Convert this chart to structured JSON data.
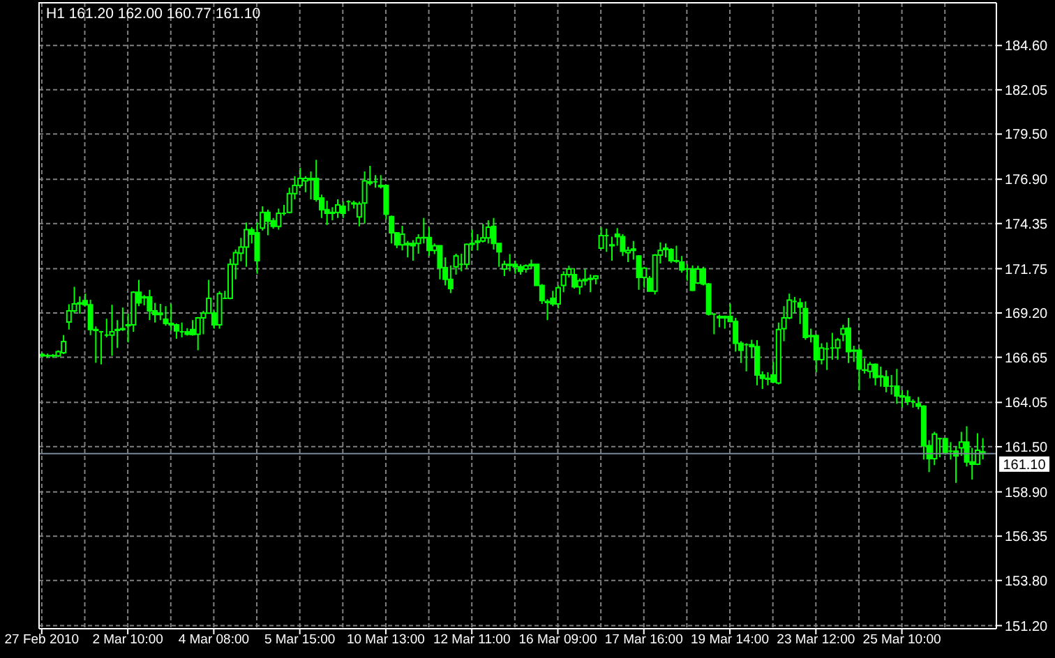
{
  "chart_data": {
    "type": "candlestick",
    "title": "H1 161.20 162.00 160.77 161.10",
    "color": "#00ff00",
    "grid": true,
    "ylim": [
      151.02,
      187.06
    ],
    "yticks": [
      {
        "value": 151.2,
        "label": "151.20"
      },
      {
        "value": 153.8,
        "label": "153.80"
      },
      {
        "value": 156.35,
        "label": "156.35"
      },
      {
        "value": 158.9,
        "label": "158.90"
      },
      {
        "value": 161.5,
        "label": "161.50"
      },
      {
        "value": 164.05,
        "label": "164.05"
      },
      {
        "value": 166.65,
        "label": "166.65"
      },
      {
        "value": 169.2,
        "label": "169.20"
      },
      {
        "value": 171.75,
        "label": "171.75"
      },
      {
        "value": 174.35,
        "label": "174.35"
      },
      {
        "value": 176.9,
        "label": "176.90"
      },
      {
        "value": 179.5,
        "label": "179.50"
      },
      {
        "value": 182.05,
        "label": "182.05"
      },
      {
        "value": 184.6,
        "label": "184.60"
      }
    ],
    "ref_lines": [
      {
        "axis": "y",
        "value": 161.1,
        "label": "161.10",
        "color": "#778899"
      }
    ],
    "categories": [
      "27 Feb 2010",
      null,
      null,
      null,
      null,
      null,
      null,
      null,
      null,
      null,
      null,
      null,
      null,
      null,
      null,
      null,
      "2 Mar 10:00",
      null,
      null,
      null,
      null,
      null,
      null,
      null,
      null,
      null,
      null,
      null,
      null,
      null,
      null,
      null,
      "4 Mar 08:00",
      null,
      null,
      null,
      null,
      null,
      null,
      null,
      null,
      null,
      null,
      null,
      null,
      null,
      null,
      null,
      "5 Mar 15:00",
      null,
      null,
      null,
      null,
      null,
      null,
      null,
      null,
      null,
      null,
      null,
      null,
      null,
      null,
      null,
      "10 Mar 13:00",
      null,
      null,
      null,
      null,
      null,
      null,
      null,
      null,
      null,
      null,
      null,
      null,
      null,
      null,
      null,
      "12 Mar 11:00",
      null,
      null,
      null,
      null,
      null,
      null,
      null,
      null,
      null,
      null,
      null,
      null,
      null,
      null,
      null,
      "16 Mar 09:00",
      null,
      null,
      null,
      null,
      null,
      null,
      null,
      null,
      null,
      null,
      null,
      null,
      null,
      null,
      null,
      "17 Mar 16:00",
      null,
      null,
      null,
      null,
      null,
      null,
      null,
      null,
      null,
      null,
      null,
      null,
      null,
      null,
      null,
      "19 Mar 14:00",
      null,
      null,
      null,
      null,
      null,
      null,
      null,
      null,
      null,
      null,
      null,
      null,
      null,
      null,
      null,
      "23 Mar 12:00",
      null,
      null,
      null,
      null,
      null,
      null,
      null,
      null,
      null,
      null,
      null,
      null,
      null,
      null,
      null,
      "25 Mar 10:00",
      null,
      null,
      null,
      null,
      null,
      null,
      null,
      null,
      null,
      null,
      null,
      null,
      null,
      null,
      null
    ],
    "ohlc": [
      [
        166.81,
        166.91,
        166.65,
        166.73
      ],
      [
        166.73,
        166.86,
        166.62,
        166.75
      ],
      [
        166.75,
        166.83,
        166.62,
        166.73
      ],
      [
        166.73,
        167.05,
        166.65,
        166.97
      ],
      [
        166.91,
        167.93,
        166.83,
        167.56
      ],
      [
        168.68,
        169.7,
        168.25,
        169.32
      ],
      [
        169.32,
        170.71,
        169.19,
        169.72
      ],
      [
        169.72,
        170.15,
        169.16,
        169.78
      ],
      [
        169.91,
        170.31,
        169.59,
        169.67
      ],
      [
        169.67,
        169.96,
        167.93,
        168.25
      ],
      [
        168.25,
        168.43,
        166.33,
        168.2
      ],
      [
        168.12,
        168.17,
        166.24,
        168.12
      ],
      [
        167.93,
        168.87,
        167.8,
        167.93
      ],
      [
        167.93,
        169.67,
        166.73,
        168.12
      ],
      [
        168.2,
        168.79,
        167.18,
        168.25
      ],
      [
        168.3,
        169.51,
        168.17,
        168.25
      ],
      [
        168.47,
        169.16,
        167.5,
        168.52
      ],
      [
        168.52,
        170.45,
        168.12,
        170.39
      ],
      [
        170.39,
        171.11,
        169.59,
        169.78
      ],
      [
        170.07,
        170.23,
        169.64,
        170.12
      ],
      [
        170.12,
        170.53,
        168.79,
        169.32
      ],
      [
        169.32,
        169.78,
        168.65,
        169.11
      ],
      [
        169.11,
        169.72,
        168.79,
        169.19
      ],
      [
        168.84,
        169.59,
        168.47,
        168.6
      ],
      [
        168.6,
        169.72,
        168.2,
        168.52
      ],
      [
        168.52,
        168.6,
        167.72,
        168.17
      ],
      [
        168.12,
        168.65,
        167.8,
        168.12
      ],
      [
        168.12,
        168.33,
        167.9,
        167.98
      ],
      [
        168.25,
        168.79,
        167.9,
        167.96
      ],
      [
        167.98,
        168.97,
        167.05,
        168.92
      ],
      [
        168.92,
        169.32,
        167.98,
        169.19
      ],
      [
        169.19,
        171.11,
        169.19,
        170.04
      ],
      [
        169.19,
        169.32,
        168.3,
        168.52
      ],
      [
        168.52,
        170.45,
        168.3,
        170.31
      ],
      [
        170.04,
        170.47,
        170.02,
        170.04
      ],
      [
        170.04,
        172.32,
        169.99,
        172.0
      ],
      [
        172.0,
        172.85,
        171.14,
        172.67
      ],
      [
        172.64,
        173.52,
        172.18,
        172.99
      ],
      [
        172.99,
        174.41,
        171.86,
        174.0
      ],
      [
        174.0,
        174.14,
        173.2,
        173.74
      ],
      [
        173.82,
        174.41,
        171.46,
        172.21
      ],
      [
        174.09,
        175.34,
        173.95,
        174.99
      ],
      [
        174.99,
        175.15,
        173.68,
        174.49
      ],
      [
        174.51,
        174.67,
        174.06,
        174.19
      ],
      [
        174.19,
        175.21,
        174.0,
        174.94
      ],
      [
        174.94,
        175.42,
        174.81,
        174.94
      ],
      [
        174.99,
        176.41,
        174.94,
        176.07
      ],
      [
        176.07,
        177.08,
        175.74,
        176.55
      ],
      [
        176.55,
        177.56,
        176.41,
        176.95
      ],
      [
        176.81,
        177.08,
        176.15,
        176.95
      ],
      [
        176.87,
        177.35,
        175.74,
        176.95
      ],
      [
        176.95,
        178.02,
        175.61,
        175.74
      ],
      [
        175.82,
        176.01,
        174.67,
        175.15
      ],
      [
        175.15,
        175.66,
        174.27,
        174.94
      ],
      [
        174.94,
        175.29,
        174.54,
        174.99
      ],
      [
        174.99,
        175.74,
        174.67,
        175.42
      ],
      [
        175.34,
        175.61,
        174.67,
        174.94
      ],
      [
        175.61,
        175.69,
        175.07,
        175.61
      ],
      [
        175.48,
        175.66,
        175.21,
        175.53
      ],
      [
        174.73,
        175.61,
        174.19,
        175.48
      ],
      [
        175.53,
        177.35,
        174.35,
        176.81
      ],
      [
        176.76,
        177.67,
        176.55,
        176.68
      ],
      [
        176.76,
        177.14,
        176.41,
        176.76
      ],
      [
        176.55,
        177.14,
        176.36,
        176.47
      ],
      [
        176.55,
        176.55,
        174.59,
        174.89
      ],
      [
        174.75,
        174.81,
        173.2,
        173.82
      ],
      [
        173.82,
        173.82,
        172.93,
        173.12
      ],
      [
        173.12,
        174.22,
        172.8,
        173.74
      ],
      [
        173.12,
        173.34,
        172.4,
        173.2
      ],
      [
        173.2,
        173.39,
        172.21,
        173.07
      ],
      [
        173.2,
        173.74,
        172.61,
        173.52
      ],
      [
        173.52,
        174.67,
        173.2,
        173.55
      ],
      [
        173.55,
        174.14,
        172.48,
        172.8
      ],
      [
        172.8,
        173.2,
        172.59,
        173.07
      ],
      [
        173.07,
        173.07,
        171.14,
        171.81
      ],
      [
        171.81,
        172.4,
        170.79,
        171.14
      ],
      [
        171.14,
        171.94,
        170.34,
        170.61
      ],
      [
        171.86,
        172.61,
        171.41,
        172.48
      ],
      [
        172.0,
        172.61,
        171.6,
        172.0
      ],
      [
        172.0,
        173.2,
        171.78,
        173.15
      ],
      [
        173.15,
        174.0,
        172.8,
        173.2
      ],
      [
        173.26,
        173.74,
        172.8,
        173.34
      ],
      [
        173.34,
        174.33,
        173.26,
        173.52
      ],
      [
        173.52,
        174.54,
        173.2,
        174.14
      ],
      [
        174.19,
        174.67,
        172.85,
        173.2
      ],
      [
        173.2,
        173.2,
        171.86,
        172.72
      ],
      [
        171.73,
        172.21,
        171.33,
        172.0
      ],
      [
        172.0,
        172.59,
        171.6,
        171.94
      ],
      [
        172.0,
        172.21,
        171.46,
        171.86
      ],
      [
        171.86,
        172.0,
        171.41,
        171.6
      ],
      [
        171.73,
        172.0,
        171.52,
        171.92
      ],
      [
        171.92,
        172.27,
        171.73,
        172.0
      ],
      [
        172.0,
        172.0,
        170.79,
        170.79
      ],
      [
        170.79,
        170.87,
        169.72,
        169.91
      ],
      [
        169.86,
        169.99,
        168.79,
        169.8
      ],
      [
        170.04,
        170.47,
        169.59,
        169.72
      ],
      [
        169.72,
        170.79,
        169.46,
        170.66
      ],
      [
        170.79,
        171.6,
        170.39,
        171.41
      ],
      [
        171.41,
        171.92,
        171.25,
        171.73
      ],
      [
        171.41,
        171.78,
        170.61,
        170.71
      ],
      [
        170.71,
        171.19,
        170.26,
        171.06
      ],
      [
        171.06,
        171.73,
        170.79,
        171.14
      ],
      [
        171.19,
        171.41,
        170.39,
        171.14
      ],
      [
        171.19,
        171.38,
        170.85,
        171.33
      ],
      [
        172.93,
        174.14,
        172.88,
        173.66
      ],
      [
        173.66,
        174.06,
        172.72,
        173.66
      ],
      [
        173.07,
        173.6,
        172.21,
        173.12
      ],
      [
        173.74,
        174.09,
        173.07,
        173.6
      ],
      [
        173.6,
        173.74,
        172.48,
        172.75
      ],
      [
        172.67,
        173.01,
        172.13,
        172.8
      ],
      [
        172.8,
        173.34,
        172.27,
        172.88
      ],
      [
        172.48,
        172.53,
        170.53,
        171.25
      ],
      [
        171.25,
        171.86,
        170.66,
        171.78
      ],
      [
        171.19,
        171.33,
        170.45,
        170.45
      ],
      [
        170.45,
        172.59,
        170.26,
        172.53
      ],
      [
        172.53,
        173.26,
        172.05,
        172.8
      ],
      [
        172.85,
        173.2,
        172.4,
        172.93
      ],
      [
        172.85,
        172.93,
        172.08,
        172.21
      ],
      [
        172.21,
        173.07,
        172.08,
        172.18
      ],
      [
        172.13,
        172.48,
        171.52,
        171.68
      ],
      [
        171.73,
        172.0,
        171.06,
        171.73
      ],
      [
        171.73,
        171.94,
        170.45,
        170.5
      ],
      [
        170.93,
        171.92,
        170.87,
        171.73
      ],
      [
        171.73,
        171.86,
        170.79,
        170.87
      ],
      [
        170.87,
        170.93,
        169.05,
        169.13
      ],
      [
        169.13,
        169.19,
        167.98,
        169.13
      ],
      [
        169.0,
        169.11,
        168.38,
        168.92
      ],
      [
        168.92,
        169.05,
        168.3,
        169.0
      ],
      [
        169.0,
        169.72,
        168.65,
        168.71
      ],
      [
        168.71,
        168.92,
        166.97,
        167.45
      ],
      [
        167.45,
        167.58,
        166.32,
        167.05
      ],
      [
        167.37,
        167.45,
        165.84,
        167.37
      ],
      [
        167.37,
        167.66,
        166.59,
        167.26
      ],
      [
        167.26,
        167.64,
        165.04,
        165.63
      ],
      [
        165.63,
        165.84,
        164.83,
        165.44
      ],
      [
        165.44,
        165.79,
        165.04,
        165.39
      ],
      [
        165.63,
        166.38,
        165.17,
        165.23
      ],
      [
        165.17,
        168.65,
        165.09,
        168.25
      ],
      [
        168.3,
        169.59,
        167.58,
        168.92
      ],
      [
        168.92,
        170.31,
        168.84,
        169.94
      ],
      [
        169.86,
        170.12,
        169.19,
        169.86
      ],
      [
        169.78,
        170.04,
        168.57,
        169.54
      ],
      [
        169.45,
        169.86,
        167.66,
        167.8
      ],
      [
        167.85,
        168.3,
        167.5,
        167.9
      ],
      [
        167.9,
        167.98,
        165.79,
        166.51
      ],
      [
        166.51,
        167.45,
        166.24,
        167.18
      ],
      [
        167.13,
        167.5,
        165.92,
        167.13
      ],
      [
        167.18,
        168.06,
        166.51,
        167.18
      ],
      [
        167.18,
        167.77,
        166.51,
        167.66
      ],
      [
        167.98,
        168.52,
        167.58,
        168.3
      ],
      [
        168.33,
        168.92,
        166.32,
        166.97
      ],
      [
        167.0,
        167.31,
        166.38,
        167.05
      ],
      [
        167.05,
        167.18,
        164.76,
        165.98
      ],
      [
        165.92,
        166.59,
        165.71,
        165.9
      ],
      [
        165.84,
        166.38,
        165.44,
        166.24
      ],
      [
        166.24,
        166.3,
        165.04,
        165.49
      ],
      [
        165.57,
        166.11,
        164.96,
        165.52
      ],
      [
        165.52,
        165.9,
        164.64,
        164.99
      ],
      [
        164.99,
        165.63,
        164.5,
        164.99
      ],
      [
        164.99,
        165.98,
        163.97,
        164.42
      ],
      [
        164.42,
        164.76,
        163.75,
        164.36
      ],
      [
        164.36,
        164.76,
        163.89,
        164.1
      ],
      [
        164.1,
        164.23,
        163.75,
        164.1
      ],
      [
        163.97,
        164.36,
        163.65,
        163.83
      ],
      [
        163.83,
        163.89,
        160.76,
        161.56
      ],
      [
        161.56,
        161.88,
        160.04,
        160.81
      ],
      [
        160.81,
        162.36,
        160.44,
        162.23
      ],
      [
        161.97,
        162.02,
        160.89,
        161.97
      ],
      [
        161.97,
        161.97,
        161.03,
        161.16
      ],
      [
        161.24,
        161.77,
        160.76,
        161.24
      ],
      [
        161.24,
        161.51,
        159.42,
        160.97
      ],
      [
        161.43,
        162.36,
        160.97,
        161.77
      ],
      [
        161.77,
        162.68,
        160.36,
        160.62
      ],
      [
        160.62,
        161.43,
        159.61,
        160.49
      ],
      [
        160.49,
        162.28,
        160.44,
        161.29
      ],
      [
        161.2,
        162.0,
        160.77,
        161.1
      ]
    ]
  }
}
